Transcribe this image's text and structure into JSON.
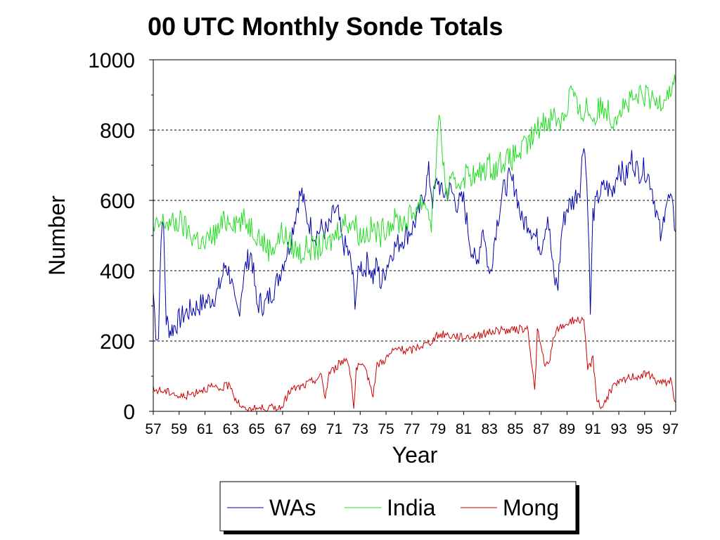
{
  "chart_data": {
    "type": "line",
    "title": "00 UTC Monthly Sonde Totals",
    "xlabel": "Year",
    "ylabel": "Number",
    "xlim": [
      57,
      97.4
    ],
    "ylim": [
      0,
      1000
    ],
    "yticks": [
      "0",
      "200",
      "400",
      "600",
      "800",
      "1000"
    ],
    "xticks": [
      "57",
      "59",
      "61",
      "63",
      "65",
      "67",
      "69",
      "71",
      "73",
      "75",
      "77",
      "79",
      "81",
      "83",
      "85",
      "87",
      "89",
      "91",
      "93",
      "95",
      "97"
    ],
    "grid": "horizontal dashed at 200, 400, 600, 800",
    "legend_position": "bottom",
    "series": [
      {
        "name": "WAs",
        "color": "#0000aa",
        "points": [
          [
            57.0,
            340
          ],
          [
            57.2,
            230
          ],
          [
            57.4,
            210
          ],
          [
            57.6,
            510
          ],
          [
            57.8,
            520
          ],
          [
            58.0,
            260
          ],
          [
            58.3,
            230
          ],
          [
            58.6,
            240
          ],
          [
            59.0,
            260
          ],
          [
            59.5,
            280
          ],
          [
            60.0,
            290
          ],
          [
            60.5,
            300
          ],
          [
            61.0,
            310
          ],
          [
            61.5,
            320
          ],
          [
            62.0,
            340
          ],
          [
            62.3,
            380
          ],
          [
            62.6,
            420
          ],
          [
            63.0,
            380
          ],
          [
            63.3,
            300
          ],
          [
            63.6,
            280
          ],
          [
            64.0,
            390
          ],
          [
            64.3,
            430
          ],
          [
            64.6,
            450
          ],
          [
            65.0,
            300
          ],
          [
            65.3,
            310
          ],
          [
            65.6,
            300
          ],
          [
            66.0,
            330
          ],
          [
            66.5,
            360
          ],
          [
            67.0,
            420
          ],
          [
            67.5,
            470
          ],
          [
            68.0,
            560
          ],
          [
            68.3,
            610
          ],
          [
            68.5,
            620
          ],
          [
            68.8,
            560
          ],
          [
            69.0,
            540
          ],
          [
            69.5,
            500
          ],
          [
            70.0,
            520
          ],
          [
            70.5,
            510
          ],
          [
            71.0,
            570
          ],
          [
            71.3,
            560
          ],
          [
            71.6,
            480
          ],
          [
            72.0,
            460
          ],
          [
            72.3,
            420
          ],
          [
            72.6,
            320
          ],
          [
            73.0,
            420
          ],
          [
            73.3,
            400
          ],
          [
            73.6,
            430
          ],
          [
            74.0,
            380
          ],
          [
            74.3,
            420
          ],
          [
            74.6,
            360
          ],
          [
            75.0,
            410
          ],
          [
            75.5,
            460
          ],
          [
            76.0,
            480
          ],
          [
            76.5,
            500
          ],
          [
            77.0,
            520
          ],
          [
            77.5,
            560
          ],
          [
            78.0,
            630
          ],
          [
            78.3,
            680
          ],
          [
            78.6,
            600
          ],
          [
            79.0,
            660
          ],
          [
            79.3,
            620
          ],
          [
            79.6,
            620
          ],
          [
            80.0,
            630
          ],
          [
            80.5,
            590
          ],
          [
            81.0,
            600
          ],
          [
            81.5,
            480
          ],
          [
            82.0,
            410
          ],
          [
            82.5,
            530
          ],
          [
            83.0,
            380
          ],
          [
            83.5,
            520
          ],
          [
            84.0,
            620
          ],
          [
            84.5,
            660
          ],
          [
            85.0,
            640
          ],
          [
            85.5,
            540
          ],
          [
            86.0,
            540
          ],
          [
            86.5,
            500
          ],
          [
            87.0,
            470
          ],
          [
            87.5,
            560
          ],
          [
            88.0,
            370
          ],
          [
            88.3,
            360
          ],
          [
            88.6,
            520
          ],
          [
            89.0,
            580
          ],
          [
            89.5,
            600
          ],
          [
            90.0,
            640
          ],
          [
            90.3,
            780
          ],
          [
            90.6,
            600
          ],
          [
            90.8,
            280
          ],
          [
            91.0,
            560
          ],
          [
            91.5,
            620
          ],
          [
            92.0,
            640
          ],
          [
            92.5,
            620
          ],
          [
            93.0,
            700
          ],
          [
            93.5,
            660
          ],
          [
            94.0,
            720
          ],
          [
            94.5,
            680
          ],
          [
            95.0,
            690
          ],
          [
            95.5,
            650
          ],
          [
            96.0,
            550
          ],
          [
            96.3,
            480
          ],
          [
            96.6,
            600
          ],
          [
            97.0,
            600
          ],
          [
            97.2,
            560
          ],
          [
            97.4,
            510
          ]
        ]
      },
      {
        "name": "India",
        "color": "#22dd22",
        "points": [
          [
            57.0,
            510
          ],
          [
            57.5,
            530
          ],
          [
            58.0,
            540
          ],
          [
            58.5,
            530
          ],
          [
            59.0,
            540
          ],
          [
            59.5,
            520
          ],
          [
            60.0,
            500
          ],
          [
            60.5,
            490
          ],
          [
            61.0,
            470
          ],
          [
            61.5,
            500
          ],
          [
            62.0,
            510
          ],
          [
            62.5,
            540
          ],
          [
            63.0,
            550
          ],
          [
            63.5,
            540
          ],
          [
            64.0,
            540
          ],
          [
            64.5,
            530
          ],
          [
            65.0,
            510
          ],
          [
            65.5,
            480
          ],
          [
            66.0,
            460
          ],
          [
            66.5,
            480
          ],
          [
            67.0,
            510
          ],
          [
            67.5,
            480
          ],
          [
            68.0,
            460
          ],
          [
            68.5,
            450
          ],
          [
            69.0,
            470
          ],
          [
            69.5,
            460
          ],
          [
            70.0,
            470
          ],
          [
            70.5,
            470
          ],
          [
            71.0,
            500
          ],
          [
            71.5,
            530
          ],
          [
            72.0,
            540
          ],
          [
            72.5,
            540
          ],
          [
            73.0,
            500
          ],
          [
            73.5,
            510
          ],
          [
            74.0,
            520
          ],
          [
            74.5,
            500
          ],
          [
            75.0,
            530
          ],
          [
            75.5,
            540
          ],
          [
            76.0,
            540
          ],
          [
            76.5,
            540
          ],
          [
            77.0,
            560
          ],
          [
            77.5,
            590
          ],
          [
            78.0,
            600
          ],
          [
            78.5,
            540
          ],
          [
            79.0,
            760
          ],
          [
            79.2,
            860
          ],
          [
            79.4,
            700
          ],
          [
            79.7,
            620
          ],
          [
            80.0,
            640
          ],
          [
            80.5,
            650
          ],
          [
            81.0,
            670
          ],
          [
            81.5,
            680
          ],
          [
            82.0,
            660
          ],
          [
            82.5,
            690
          ],
          [
            83.0,
            700
          ],
          [
            83.5,
            690
          ],
          [
            84.0,
            720
          ],
          [
            84.5,
            710
          ],
          [
            85.0,
            730
          ],
          [
            85.5,
            740
          ],
          [
            86.0,
            760
          ],
          [
            86.5,
            790
          ],
          [
            87.0,
            820
          ],
          [
            87.5,
            830
          ],
          [
            88.0,
            840
          ],
          [
            88.5,
            830
          ],
          [
            89.0,
            860
          ],
          [
            89.3,
            930
          ],
          [
            89.6,
            880
          ],
          [
            90.0,
            840
          ],
          [
            90.5,
            870
          ],
          [
            91.0,
            830
          ],
          [
            91.5,
            860
          ],
          [
            92.0,
            870
          ],
          [
            92.5,
            830
          ],
          [
            93.0,
            860
          ],
          [
            93.5,
            870
          ],
          [
            94.0,
            880
          ],
          [
            94.5,
            890
          ],
          [
            95.0,
            900
          ],
          [
            95.5,
            880
          ],
          [
            96.0,
            880
          ],
          [
            96.5,
            900
          ],
          [
            97.0,
            920
          ],
          [
            97.4,
            930
          ]
        ]
      },
      {
        "name": "Mong",
        "color": "#cc0000",
        "points": [
          [
            57.0,
            60
          ],
          [
            57.5,
            60
          ],
          [
            58.0,
            55
          ],
          [
            58.5,
            55
          ],
          [
            59.0,
            40
          ],
          [
            59.5,
            45
          ],
          [
            60.0,
            50
          ],
          [
            60.5,
            60
          ],
          [
            61.0,
            65
          ],
          [
            61.5,
            70
          ],
          [
            62.0,
            60
          ],
          [
            62.5,
            70
          ],
          [
            63.0,
            75
          ],
          [
            63.3,
            40
          ],
          [
            63.6,
            25
          ],
          [
            64.0,
            5
          ],
          [
            64.5,
            5
          ],
          [
            65.0,
            8
          ],
          [
            65.5,
            10
          ],
          [
            66.0,
            10
          ],
          [
            66.5,
            10
          ],
          [
            67.0,
            10
          ],
          [
            67.3,
            40
          ],
          [
            67.6,
            60
          ],
          [
            68.0,
            65
          ],
          [
            68.5,
            70
          ],
          [
            69.0,
            80
          ],
          [
            69.5,
            90
          ],
          [
            70.0,
            100
          ],
          [
            70.3,
            40
          ],
          [
            70.6,
            110
          ],
          [
            71.0,
            120
          ],
          [
            71.5,
            140
          ],
          [
            72.0,
            150
          ],
          [
            72.3,
            100
          ],
          [
            72.5,
            5
          ],
          [
            72.7,
            120
          ],
          [
            73.0,
            130
          ],
          [
            73.5,
            110
          ],
          [
            74.0,
            50
          ],
          [
            74.3,
            130
          ],
          [
            74.6,
            140
          ],
          [
            75.0,
            150
          ],
          [
            75.5,
            170
          ],
          [
            76.0,
            180
          ],
          [
            76.5,
            170
          ],
          [
            77.0,
            175
          ],
          [
            77.5,
            185
          ],
          [
            78.0,
            190
          ],
          [
            78.5,
            200
          ],
          [
            79.0,
            215
          ],
          [
            79.5,
            220
          ],
          [
            80.0,
            215
          ],
          [
            80.5,
            215
          ],
          [
            81.0,
            210
          ],
          [
            81.5,
            215
          ],
          [
            82.0,
            215
          ],
          [
            82.5,
            220
          ],
          [
            83.0,
            225
          ],
          [
            83.5,
            230
          ],
          [
            84.0,
            230
          ],
          [
            84.5,
            230
          ],
          [
            85.0,
            230
          ],
          [
            85.5,
            235
          ],
          [
            86.0,
            230
          ],
          [
            86.3,
            120
          ],
          [
            86.5,
            60
          ],
          [
            86.7,
            230
          ],
          [
            87.0,
            180
          ],
          [
            87.3,
            130
          ],
          [
            87.6,
            130
          ],
          [
            88.0,
            220
          ],
          [
            88.5,
            240
          ],
          [
            89.0,
            250
          ],
          [
            89.5,
            260
          ],
          [
            90.0,
            260
          ],
          [
            90.3,
            250
          ],
          [
            90.6,
            120
          ],
          [
            91.0,
            150
          ],
          [
            91.3,
            40
          ],
          [
            91.6,
            10
          ],
          [
            92.0,
            30
          ],
          [
            92.5,
            70
          ],
          [
            93.0,
            80
          ],
          [
            93.5,
            90
          ],
          [
            94.0,
            100
          ],
          [
            94.5,
            100
          ],
          [
            95.0,
            105
          ],
          [
            95.5,
            100
          ],
          [
            96.0,
            85
          ],
          [
            96.5,
            80
          ],
          [
            97.0,
            90
          ],
          [
            97.4,
            25
          ]
        ]
      }
    ]
  }
}
